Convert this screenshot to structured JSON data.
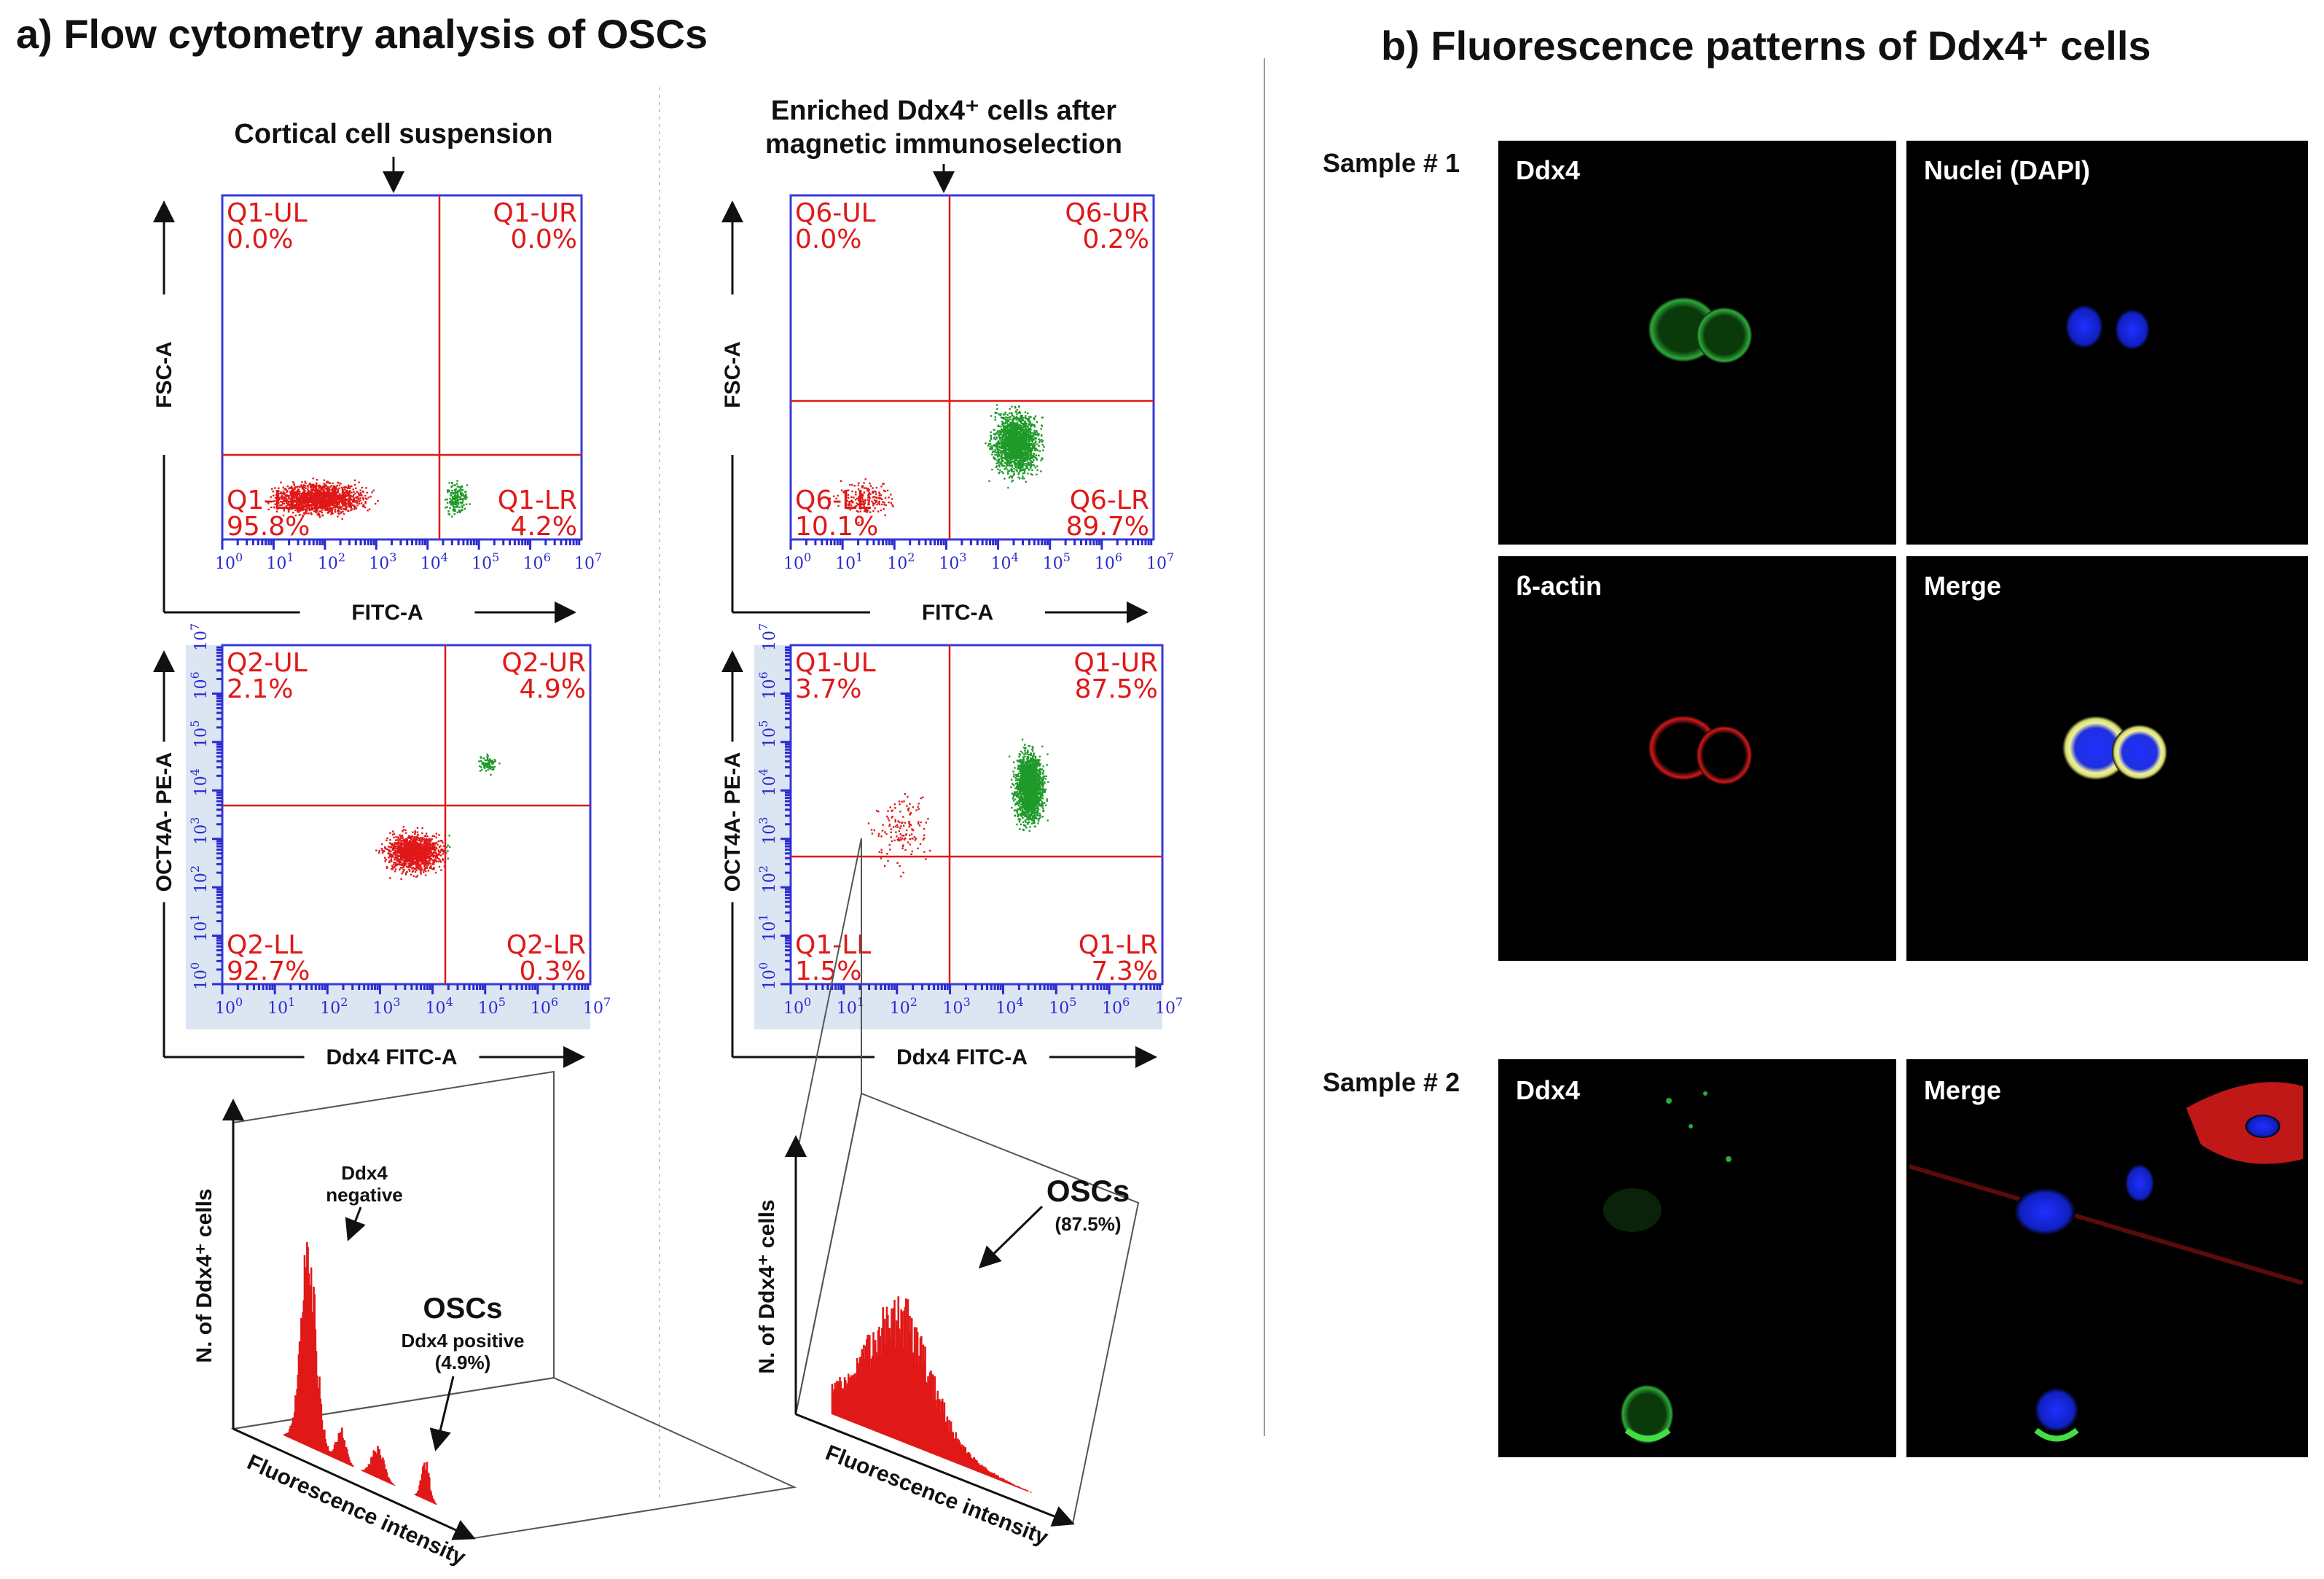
{
  "panel_a": {
    "title": "a) Flow cytometry analysis of OSCs",
    "col1_heading": "Cortical cell suspension",
    "col2_heading_line1": "Enriched Ddx4⁺ cells after",
    "col2_heading_line2": "magnetic immunoselection"
  },
  "panel_b": {
    "title": "b) Fluorescence patterns of Ddx4⁺ cells",
    "sample1": "Sample # 1",
    "sample2": "Sample # 2",
    "images": [
      {
        "label": "Ddx4",
        "sublabel": ""
      },
      {
        "label": "Nuclei",
        "sublabel": "(DAPI)"
      },
      {
        "label": "ß-actin",
        "sublabel": ""
      },
      {
        "label": "Merge",
        "sublabel": ""
      },
      {
        "label": "Ddx4",
        "sublabel": ""
      },
      {
        "label": "Merge",
        "sublabel": ""
      }
    ]
  },
  "colors": {
    "red": "#e01818",
    "green": "#1f9a2a",
    "blue_axis": "#2a2ad0",
    "frame": "#3a3ad8"
  },
  "chart_data": [
    {
      "type": "scatter",
      "id": "plot1",
      "xlabel": "FITC-A",
      "ylabel": "FSC-A",
      "x_scale": "log",
      "xlim": [
        1,
        10000000
      ],
      "x_ticks": [
        "10",
        "10",
        "10",
        "10",
        "10",
        "10",
        "10",
        "10"
      ],
      "x_tick_exps": [
        "0",
        "1",
        "2",
        "3",
        "4",
        "5",
        "6",
        "7"
      ],
      "quadrants": [
        {
          "name": "Q1-UL",
          "pct": "0.0%"
        },
        {
          "name": "Q1-UR",
          "pct": "0.0%"
        },
        {
          "name": "Q1-LL",
          "pct": "95.8%"
        },
        {
          "name": "Q1-LR",
          "pct": "4.2%"
        }
      ]
    },
    {
      "type": "scatter",
      "id": "plot2",
      "xlabel": "FITC-A",
      "ylabel": "FSC-A",
      "x_scale": "log",
      "xlim": [
        1,
        10000000
      ],
      "x_ticks": [
        "10",
        "10",
        "10",
        "10",
        "10",
        "10",
        "10",
        "10"
      ],
      "x_tick_exps": [
        "0",
        "1",
        "2",
        "3",
        "4",
        "5",
        "6",
        "7"
      ],
      "quadrants": [
        {
          "name": "Q6-UL",
          "pct": "0.0%"
        },
        {
          "name": "Q6-UR",
          "pct": "0.2%"
        },
        {
          "name": "Q6-LL",
          "pct": "10.1%"
        },
        {
          "name": "Q6-LR",
          "pct": "89.7%"
        }
      ]
    },
    {
      "type": "scatter",
      "id": "plot3",
      "xlabel": "Ddx4 FITC-A",
      "ylabel": "OCT4A- PE-A",
      "x_scale": "log",
      "y_scale": "log",
      "xlim": [
        1,
        10000000
      ],
      "ylim": [
        1,
        10000000
      ],
      "x_ticks": [
        "10",
        "10",
        "10",
        "10",
        "10",
        "10",
        "10",
        "10"
      ],
      "x_tick_exps": [
        "0",
        "1",
        "2",
        "3",
        "4",
        "5",
        "6",
        "7"
      ],
      "y_ticks": [
        "10",
        "10",
        "10",
        "10",
        "10",
        "10",
        "10",
        "10"
      ],
      "y_tick_exps": [
        "0",
        "1",
        "2",
        "3",
        "4",
        "5",
        "6",
        "7"
      ],
      "quadrants": [
        {
          "name": "Q2-UL",
          "pct": "2.1%"
        },
        {
          "name": "Q2-UR",
          "pct": "4.9%"
        },
        {
          "name": "Q2-LL",
          "pct": "92.7%"
        },
        {
          "name": "Q2-LR",
          "pct": "0.3%"
        }
      ]
    },
    {
      "type": "scatter",
      "id": "plot4",
      "xlabel": "Ddx4 FITC-A",
      "ylabel": "OCT4A- PE-A",
      "x_scale": "log",
      "y_scale": "log",
      "xlim": [
        1,
        10000000
      ],
      "ylim": [
        1,
        10000000
      ],
      "x_ticks": [
        "10",
        "10",
        "10",
        "10",
        "10",
        "10",
        "10",
        "10"
      ],
      "x_tick_exps": [
        "0",
        "1",
        "2",
        "3",
        "4",
        "5",
        "6",
        "7"
      ],
      "y_ticks": [
        "10",
        "10",
        "10",
        "10",
        "10",
        "10",
        "10",
        "10"
      ],
      "y_tick_exps": [
        "0",
        "1",
        "2",
        "3",
        "4",
        "5",
        "6",
        "7"
      ],
      "quadrants": [
        {
          "name": "Q1-UL",
          "pct": "3.7%"
        },
        {
          "name": "Q1-UR",
          "pct": "87.5%"
        },
        {
          "name": "Q1-LL",
          "pct": "1.5%"
        },
        {
          "name": "Q1-LR",
          "pct": "7.3%"
        }
      ]
    },
    {
      "type": "histogram",
      "id": "hist1",
      "xlabel": "Fluorescence intensity",
      "ylabel": "N. of Ddx4⁺ cells",
      "annotations": {
        "peak1_line1": "Ddx4",
        "peak1_line2": "negative",
        "osc": "OSCs",
        "peak2_line1": "Ddx4 positive",
        "peak2_line2": "(4.9%)"
      }
    },
    {
      "type": "histogram",
      "id": "hist2",
      "xlabel": "Fluorescence intensity",
      "ylabel": "N. of Ddx4⁺ cells",
      "annotations": {
        "osc": "OSCs",
        "pct": "(87.5%)"
      }
    }
  ]
}
